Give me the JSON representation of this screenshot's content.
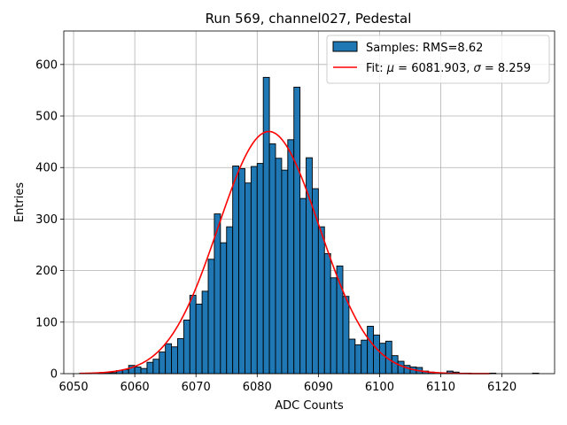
{
  "chart_data": {
    "type": "bar",
    "title": "Run 569, channel027, Pedestal",
    "xlabel": "ADC Counts",
    "ylabel": "Entries",
    "xlim": [
      6048.4,
      6128.6
    ],
    "ylim": [
      0,
      665
    ],
    "xticks": [
      6050,
      6060,
      6070,
      6080,
      6090,
      6100,
      6110,
      6120
    ],
    "yticks": [
      0,
      100,
      200,
      300,
      400,
      500,
      600
    ],
    "grid": true,
    "legend_position": "top-right",
    "legend": {
      "histogram_label": "Samples: RMS=8.62",
      "fit_label_prefix": "Fit: ",
      "fit_mu_symbol": "μ",
      "fit_mu_value": " = 6081.903, ",
      "fit_sigma_symbol": "σ",
      "fit_sigma_value": " = 8.259"
    },
    "histogram": {
      "name": "Samples: RMS=8.62",
      "bin_width": 1,
      "bin_starts": [
        6051,
        6052,
        6053,
        6054,
        6055,
        6056,
        6057,
        6058,
        6059,
        6060,
        6061,
        6062,
        6063,
        6064,
        6065,
        6066,
        6067,
        6068,
        6069,
        6070,
        6071,
        6072,
        6073,
        6074,
        6075,
        6076,
        6077,
        6078,
        6079,
        6080,
        6081,
        6082,
        6083,
        6084,
        6085,
        6086,
        6087,
        6088,
        6089,
        6090,
        6091,
        6092,
        6093,
        6094,
        6095,
        6096,
        6097,
        6098,
        6099,
        6100,
        6101,
        6102,
        6103,
        6104,
        6105,
        6106,
        6107,
        6108,
        6109,
        6110,
        6111,
        6112,
        6113,
        6114,
        6115,
        6116,
        6117,
        6118,
        6119,
        6120,
        6121,
        6122,
        6123,
        6124,
        6125
      ],
      "counts": [
        1,
        1,
        0,
        1,
        2,
        2,
        6,
        8,
        16,
        13,
        10,
        22,
        28,
        42,
        58,
        52,
        68,
        104,
        152,
        135,
        160,
        222,
        310,
        254,
        285,
        403,
        398,
        370,
        402,
        408,
        575,
        446,
        418,
        395,
        454,
        556,
        340,
        419,
        359,
        285,
        233,
        186,
        209,
        150,
        67,
        56,
        65,
        92,
        75,
        59,
        63,
        35,
        24,
        16,
        13,
        12,
        5,
        3,
        0,
        1,
        5,
        3,
        1,
        1,
        0,
        0,
        0,
        1,
        0,
        0,
        0,
        0,
        0,
        0,
        1
      ],
      "color": "#1f77b4",
      "edge_color": "#000000"
    },
    "fit": {
      "name": "Fit: μ = 6081.903, σ = 8.259",
      "mu": 6081.903,
      "sigma": 8.259,
      "amplitude": 470,
      "x_range": [
        6051,
        6118
      ],
      "color": "#ff0000"
    }
  }
}
